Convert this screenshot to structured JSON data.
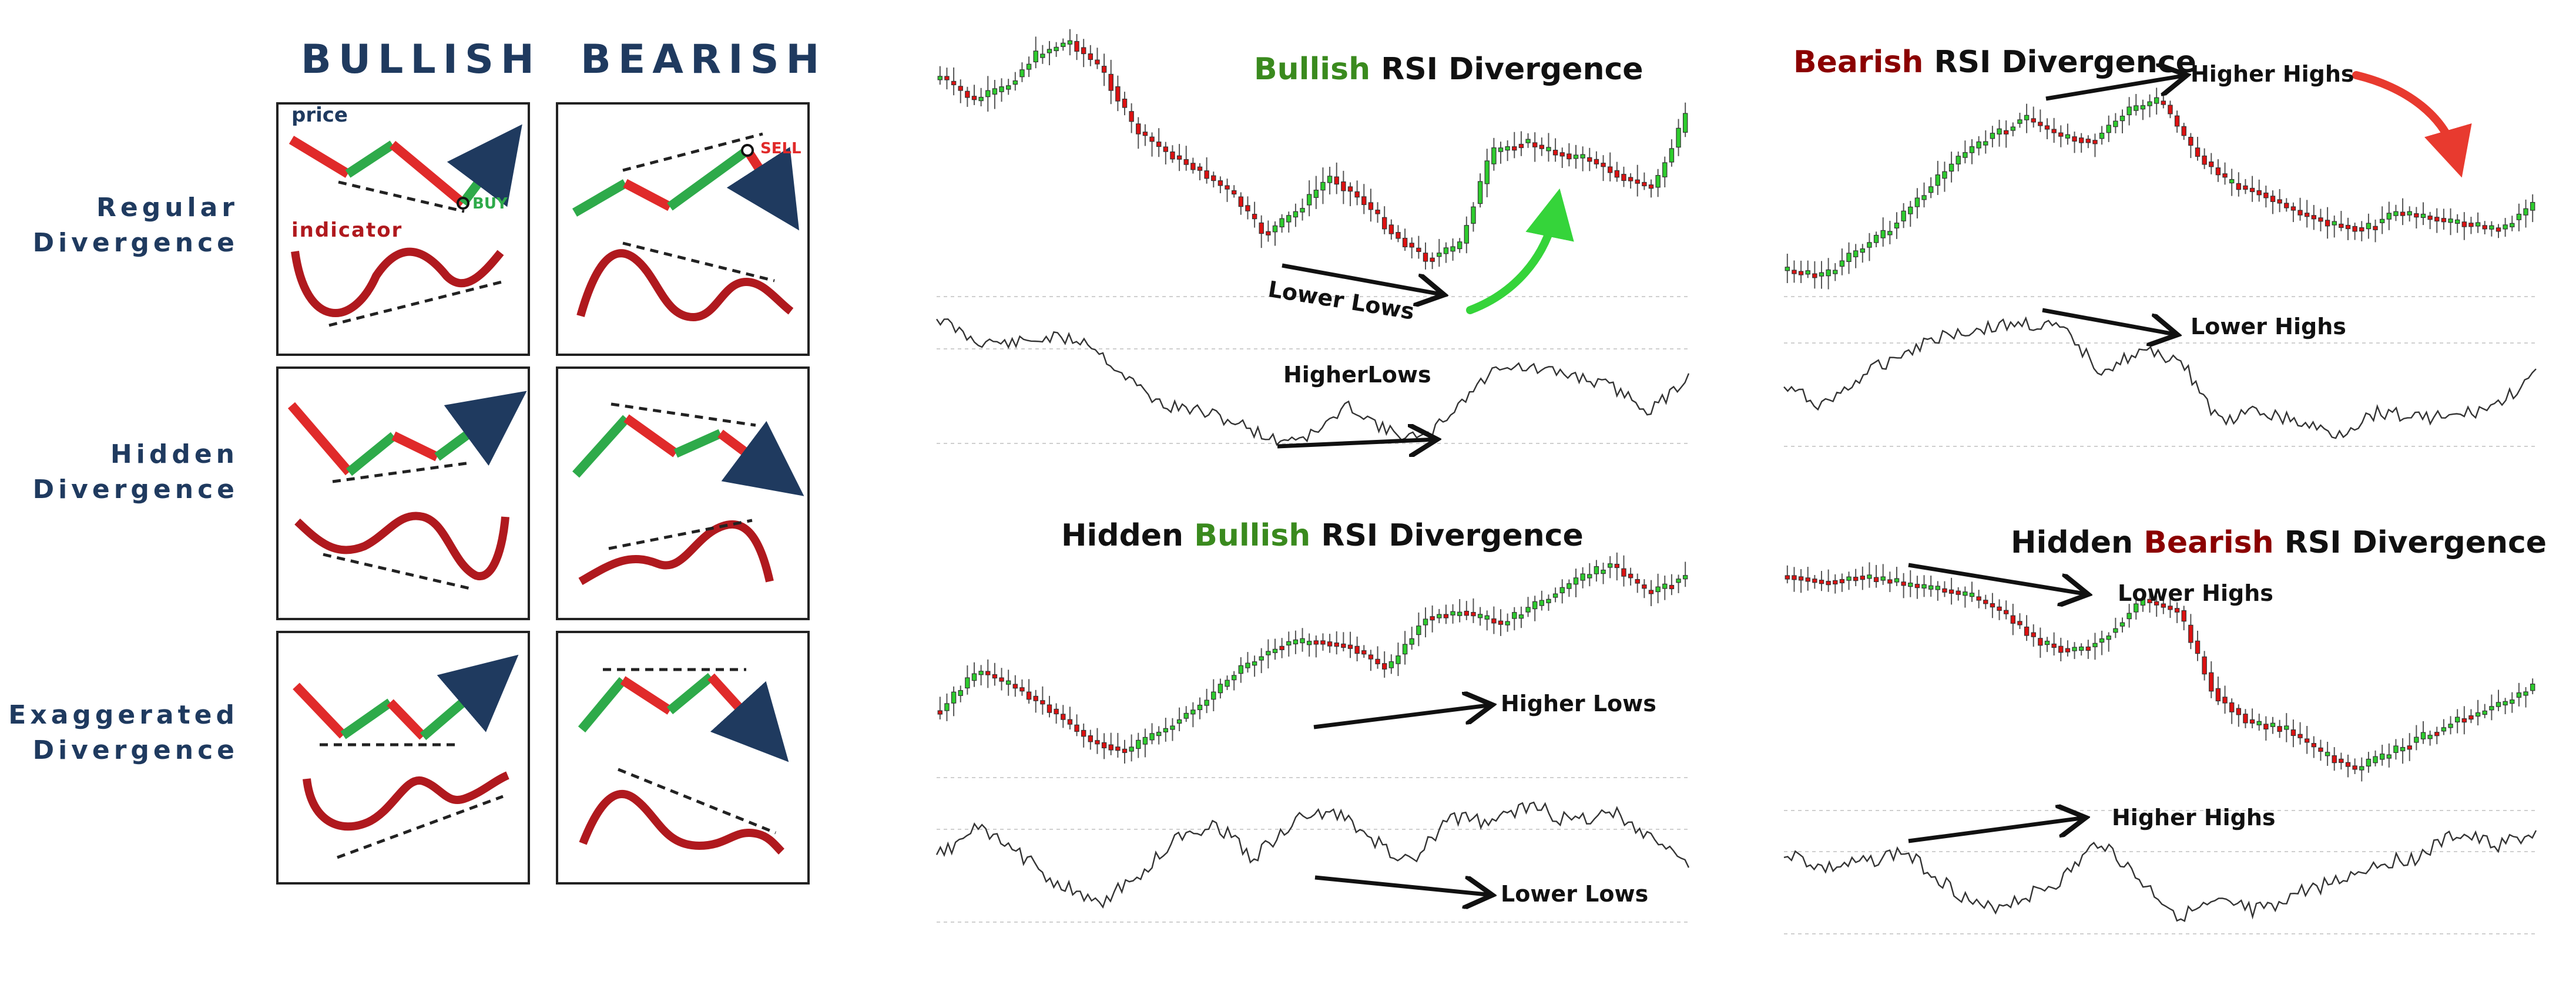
{
  "legend": {
    "columns": [
      "BULLISH",
      "BEARISH"
    ],
    "rows": [
      {
        "line1": "Regular",
        "line2": "Divergence"
      },
      {
        "line1": "Hidden",
        "line2": "Divergence"
      },
      {
        "line1": "Exaggerated",
        "line2": "Divergence"
      }
    ],
    "price_label": "price",
    "indicator_label": "indicator",
    "buy_label": "BUY",
    "sell_label": "SELL"
  },
  "charts": {
    "bullish_rsi": {
      "title_colored": "Bullish",
      "title_rest": " RSI Divergence",
      "upper_note": "Lower Lows",
      "lower_note": "HigherLows"
    },
    "bearish_rsi": {
      "title_colored": "Bearish",
      "title_rest": " RSI Divergence",
      "upper_note": "Higher Highs",
      "lower_note": "Lower Highs"
    },
    "hidden_bullish_rsi": {
      "title_pre": "Hidden ",
      "title_colored": "Bullish",
      "title_rest": " RSI Divergence",
      "upper_note": "Higher Lows",
      "lower_note": "Lower Lows"
    },
    "hidden_bearish_rsi": {
      "title_pre": "Hidden ",
      "title_colored": "Bearish",
      "title_rest": " RSI Divergence",
      "upper_note": "Lower Highs",
      "lower_note": "Higher Highs"
    }
  },
  "colors": {
    "navy": "#1f3a5f",
    "bull_green": "#3a8a1e",
    "bear_red": "#8b0000",
    "candle_up": "#2ecc2e",
    "candle_down": "#dd1111",
    "segment_green": "#2eaa4a",
    "segment_red": "#e02a2a",
    "indicator_red": "#b0191e",
    "arrow_green": "#35d43a",
    "arrow_red": "#e83a2f"
  }
}
